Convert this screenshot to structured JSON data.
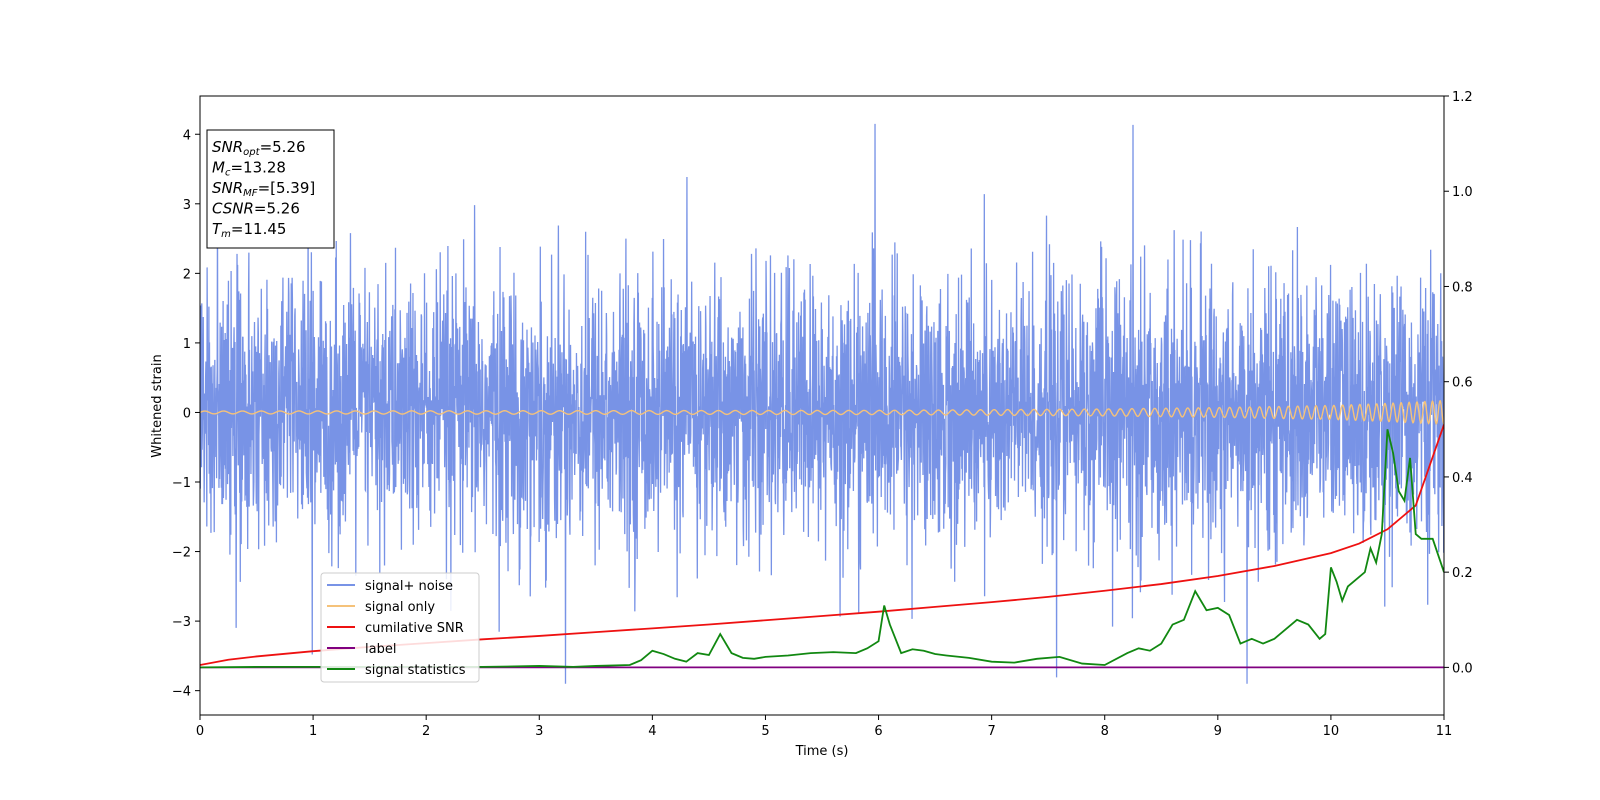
{
  "chart_data": {
    "type": "line",
    "xlabel": "Time (s)",
    "ylabel": "Whitened strain",
    "xlim": [
      0,
      11
    ],
    "ylim_left": [
      -4.35,
      4.55
    ],
    "ylim_right": [
      -0.1,
      1.2
    ],
    "x_ticks": [
      "0",
      "1",
      "2",
      "3",
      "4",
      "5",
      "6",
      "7",
      "8",
      "9",
      "10",
      "11"
    ],
    "y_left_ticks": [
      "−4",
      "−3",
      "−2",
      "−1",
      "0",
      "1",
      "2",
      "3",
      "4"
    ],
    "y_right_ticks": [
      "0.0",
      "0.2",
      "0.4",
      "0.6",
      "0.8",
      "1.0",
      "1.2"
    ],
    "grid": false,
    "legend_position": "lower-left",
    "info_box": {
      "lines": [
        {
          "main": "SNR",
          "sub": "opt",
          "value": "=5.26"
        },
        {
          "main": "M",
          "sub": "c",
          "value": "=13.28"
        },
        {
          "main": "SNR",
          "sub": "MF",
          "value": "=[5.39]"
        },
        {
          "main": "CSNR",
          "sub": "",
          "value": "=5.26"
        },
        {
          "main": "T",
          "sub": "m",
          "value": "=11.45"
        }
      ]
    },
    "series": [
      {
        "name": "signal+ noise",
        "axis": "left",
        "color": "#7893e6",
        "style": "noise",
        "sigma": 0.95,
        "peak_max": 4.15,
        "peak_min": -3.9
      },
      {
        "name": "signal only",
        "axis": "left",
        "color": "#f5c27a",
        "style": "chirp",
        "amplitude_x": [
          0,
          6,
          8,
          9,
          10,
          10.5,
          11
        ],
        "amplitude_y": [
          0.02,
          0.03,
          0.05,
          0.07,
          0.1,
          0.13,
          0.17
        ]
      },
      {
        "name": "cumilative SNR",
        "axis": "right",
        "color": "#ee1111",
        "x": [
          0,
          0.25,
          0.5,
          1,
          1.5,
          2,
          2.5,
          3,
          3.5,
          4,
          4.5,
          5,
          5.5,
          6,
          6.5,
          7,
          7.5,
          8,
          8.5,
          9,
          9.5,
          10,
          10.25,
          10.5,
          10.75,
          11
        ],
        "y": [
          0.005,
          0.016,
          0.023,
          0.034,
          0.043,
          0.051,
          0.059,
          0.066,
          0.074,
          0.082,
          0.09,
          0.099,
          0.108,
          0.117,
          0.127,
          0.137,
          0.148,
          0.161,
          0.175,
          0.192,
          0.213,
          0.24,
          0.26,
          0.29,
          0.34,
          0.51
        ]
      },
      {
        "name": "label",
        "axis": "right",
        "color": "#800080",
        "x": [
          0,
          11
        ],
        "y": [
          0,
          0
        ]
      },
      {
        "name": "signal statistics",
        "axis": "right",
        "color": "#118811",
        "x": [
          0,
          0.5,
          1,
          1.5,
          2,
          2.5,
          3,
          3.3,
          3.5,
          3.8,
          3.9,
          4.0,
          4.1,
          4.2,
          4.3,
          4.4,
          4.5,
          4.6,
          4.7,
          4.8,
          4.9,
          5.0,
          5.2,
          5.4,
          5.6,
          5.8,
          5.9,
          6.0,
          6.05,
          6.1,
          6.2,
          6.3,
          6.4,
          6.5,
          6.6,
          6.8,
          7.0,
          7.2,
          7.4,
          7.6,
          7.8,
          8.0,
          8.2,
          8.3,
          8.4,
          8.5,
          8.6,
          8.7,
          8.8,
          8.9,
          9.0,
          9.1,
          9.2,
          9.3,
          9.4,
          9.5,
          9.6,
          9.7,
          9.8,
          9.9,
          9.95,
          10.0,
          10.05,
          10.1,
          10.15,
          10.2,
          10.3,
          10.35,
          10.4,
          10.45,
          10.5,
          10.55,
          10.6,
          10.65,
          10.7,
          10.75,
          10.8,
          10.9,
          11.0
        ],
        "y": [
          0.0,
          0.001,
          0.001,
          0.001,
          0.001,
          0.001,
          0.003,
          0.001,
          0.003,
          0.005,
          0.015,
          0.035,
          0.028,
          0.018,
          0.012,
          0.03,
          0.026,
          0.07,
          0.03,
          0.02,
          0.018,
          0.022,
          0.025,
          0.03,
          0.032,
          0.03,
          0.04,
          0.055,
          0.13,
          0.09,
          0.03,
          0.038,
          0.035,
          0.028,
          0.025,
          0.02,
          0.012,
          0.01,
          0.018,
          0.022,
          0.008,
          0.005,
          0.03,
          0.04,
          0.035,
          0.05,
          0.09,
          0.1,
          0.16,
          0.12,
          0.125,
          0.11,
          0.05,
          0.06,
          0.05,
          0.06,
          0.08,
          0.1,
          0.09,
          0.06,
          0.07,
          0.21,
          0.18,
          0.14,
          0.17,
          0.18,
          0.2,
          0.25,
          0.22,
          0.28,
          0.5,
          0.45,
          0.37,
          0.35,
          0.44,
          0.28,
          0.27,
          0.27,
          0.2
        ]
      }
    ]
  }
}
